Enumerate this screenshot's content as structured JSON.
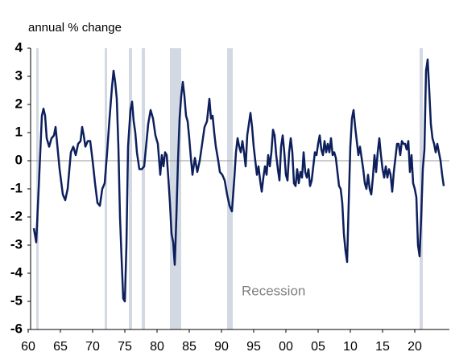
{
  "chart_data": {
    "type": "line",
    "y_axis_label": "annual % change",
    "annotation": "Recession",
    "color": "#0d1f5c",
    "recession_color": "#d3d9e3",
    "xlim": [
      1960.375,
      2025.375
    ],
    "ylim": [
      -6,
      4
    ],
    "yticks": [
      -6,
      -5,
      -4,
      -3,
      -2,
      -1,
      0,
      1,
      2,
      3,
      4
    ],
    "xticks": [
      {
        "value": 1960,
        "label": "60"
      },
      {
        "value": 1965,
        "label": "65"
      },
      {
        "value": 1970,
        "label": "70"
      },
      {
        "value": 1975,
        "label": "75"
      },
      {
        "value": 1980,
        "label": "80"
      },
      {
        "value": 1985,
        "label": "85"
      },
      {
        "value": 1990,
        "label": "90"
      },
      {
        "value": 1995,
        "label": "95"
      },
      {
        "value": 2000,
        "label": "00"
      },
      {
        "value": 2005,
        "label": "05"
      },
      {
        "value": 2010,
        "label": "10"
      },
      {
        "value": 2015,
        "label": "15"
      },
      {
        "value": 2020,
        "label": "20"
      }
    ],
    "recessions": [
      [
        1961.25,
        1961.625
      ],
      [
        1971.875,
        1972.25
      ],
      [
        1975.625,
        1976.125
      ],
      [
        1977.625,
        1978.125
      ],
      [
        1982,
        1983.75
      ],
      [
        1990.875,
        1991.75
      ],
      [
        2020.75,
        2021.25
      ]
    ],
    "x": [
      1960.875,
      1961.25,
      1961.625,
      1962.125,
      1962.375,
      1962.625,
      1962.875,
      1963.25,
      1963.625,
      1964,
      1964.25,
      1964.5,
      1964.875,
      1965.375,
      1965.75,
      1966.125,
      1966.625,
      1967,
      1967.375,
      1967.75,
      1968.125,
      1968.375,
      1968.625,
      1968.875,
      1969.25,
      1969.625,
      1970,
      1970.375,
      1970.75,
      1971.125,
      1971.5,
      1971.875,
      1972.25,
      1972.625,
      1973,
      1973.25,
      1973.5,
      1973.75,
      1974,
      1974.25,
      1974.5,
      1974.75,
      1975,
      1975.25,
      1975.5,
      1975.875,
      1976.125,
      1976.375,
      1976.625,
      1976.875,
      1977.25,
      1977.625,
      1978,
      1978.25,
      1978.625,
      1979,
      1979.375,
      1979.75,
      1980.125,
      1980.5,
      1980.75,
      1981,
      1981.25,
      1981.5,
      1981.75,
      1982,
      1982.25,
      1982.5,
      1982.75,
      1983,
      1983.25,
      1983.5,
      1983.75,
      1984,
      1984.25,
      1984.5,
      1984.75,
      1985,
      1985.25,
      1985.5,
      1985.875,
      1986.25,
      1986.625,
      1987,
      1987.375,
      1987.75,
      1988.125,
      1988.375,
      1988.625,
      1988.875,
      1989.125,
      1989.5,
      1989.75,
      1990.125,
      1990.5,
      1990.875,
      1991.25,
      1991.625,
      1992,
      1992.25,
      1992.5,
      1992.75,
      1993,
      1993.25,
      1993.5,
      1993.75,
      1994,
      1994.25,
      1994.5,
      1994.75,
      1995,
      1995.25,
      1995.5,
      1995.75,
      1996,
      1996.25,
      1996.5,
      1996.75,
      1997,
      1997.25,
      1997.5,
      1997.75,
      1998,
      1998.25,
      1998.5,
      1998.75,
      1999,
      1999.25,
      1999.5,
      1999.75,
      2000,
      2000.25,
      2000.5,
      2000.75,
      2001,
      2001.25,
      2001.5,
      2001.75,
      2002,
      2002.25,
      2002.5,
      2002.75,
      2003,
      2003.25,
      2003.5,
      2003.75,
      2004,
      2004.25,
      2004.5,
      2004.75,
      2005,
      2005.25,
      2005.5,
      2005.75,
      2006,
      2006.25,
      2006.5,
      2006.75,
      2007,
      2007.25,
      2007.5,
      2007.75,
      2008,
      2008.25,
      2008.5,
      2008.75,
      2009,
      2009.25,
      2009.5,
      2009.75,
      2010,
      2010.25,
      2010.5,
      2010.75,
      2011,
      2011.25,
      2011.5,
      2011.75,
      2012,
      2012.25,
      2012.5,
      2012.75,
      2013,
      2013.25,
      2013.5,
      2013.75,
      2014,
      2014.25,
      2014.5,
      2014.75,
      2015,
      2015.25,
      2015.5,
      2015.75,
      2016,
      2016.25,
      2016.5,
      2016.75,
      2017,
      2017.25,
      2017.5,
      2017.75,
      2018,
      2018.25,
      2018.5,
      2018.75,
      2019,
      2019.25,
      2019.5,
      2019.75,
      2020,
      2020.25,
      2020.5,
      2020.75,
      2021,
      2021.25,
      2021.5,
      2021.75,
      2022,
      2022.25,
      2022.5,
      2022.75,
      2023,
      2023.25,
      2023.5,
      2023.75,
      2024,
      2024.25,
      2024.5
    ],
    "values": [
      -2.4,
      -2.9,
      -1.0,
      1.6,
      1.85,
      1.6,
      0.8,
      0.5,
      0.8,
      0.9,
      1.2,
      0.6,
      -0.3,
      -1.2,
      -1.4,
      -1.0,
      0.3,
      0.5,
      0.2,
      0.6,
      0.7,
      1.2,
      0.9,
      0.5,
      0.7,
      0.7,
      0,
      -0.8,
      -1.5,
      -1.6,
      -1.0,
      -0.8,
      0.3,
      1.5,
      2.6,
      3.2,
      2.8,
      2.2,
      0.5,
      -2,
      -3.5,
      -4.9,
      -5.0,
      -3.0,
      0.5,
      1.8,
      2.1,
      1.4,
      1.0,
      0.3,
      -0.3,
      -0.3,
      -0.2,
      0.4,
      1.3,
      1.8,
      1.5,
      0.9,
      0.6,
      -0.5,
      0.2,
      -0.2,
      0.3,
      0.2,
      -0.6,
      -1.5,
      -2.6,
      -2.9,
      -3.7,
      -2.0,
      0,
      1.5,
      2.3,
      2.8,
      2.3,
      1.6,
      1.4,
      0.8,
      0.1,
      -0.5,
      0.1,
      -0.4,
      0,
      0.6,
      1.2,
      1.4,
      2.2,
      1.5,
      1.6,
      1.0,
      0.5,
      0,
      -0.4,
      -0.5,
      -0.7,
      -1.2,
      -1.6,
      -1.8,
      -0.6,
      0.3,
      0.8,
      0.5,
      0.3,
      0.7,
      0.3,
      -0.2,
      0.9,
      1.3,
      1.7,
      1.2,
      0.5,
      0,
      -0.5,
      -0.2,
      -0.7,
      -1.1,
      -0.6,
      -0.2,
      -0.5,
      0.2,
      -0.2,
      0.3,
      1.1,
      0.9,
      0.2,
      -0.3,
      -0.7,
      0.5,
      0.9,
      0.3,
      -0.5,
      -0.7,
      0.3,
      0.8,
      0.3,
      -0.8,
      -0.9,
      -0.3,
      -0.8,
      -0.4,
      -0.6,
      0.3,
      -0.4,
      -0.6,
      -0.3,
      -0.9,
      -0.7,
      -0.2,
      0.3,
      0.2,
      0.6,
      0.9,
      0.4,
      0.2,
      0.7,
      0.3,
      0.6,
      0.3,
      0.8,
      0.2,
      0.3,
      0.1,
      -0.4,
      -0.9,
      -1.0,
      -1.5,
      -2.6,
      -3.2,
      -3.6,
      -1.5,
      0.5,
      1.5,
      1.8,
      1.2,
      0.7,
      0.2,
      0.5,
      0.1,
      -0.3,
      -0.8,
      -1.0,
      -0.5,
      -1.0,
      -1.2,
      -0.6,
      0.2,
      -0.4,
      0.3,
      0.8,
      0.2,
      -0.3,
      -0.6,
      -0.2,
      -0.6,
      -0.3,
      -0.5,
      -1.1,
      -0.4,
      0.1,
      0.6,
      0.6,
      0.2,
      0.7,
      0.6,
      0.6,
      0.4,
      0.7,
      -0.4,
      0.2,
      -0.8,
      -1.0,
      -1.3,
      -3.0,
      -3.4,
      -2.0,
      -0.3,
      0.4,
      3.2,
      3.6,
      2.5,
      1.3,
      0.8,
      0.6,
      0.3,
      0.6,
      0.3,
      0,
      -0.5,
      -0.9
    ]
  }
}
